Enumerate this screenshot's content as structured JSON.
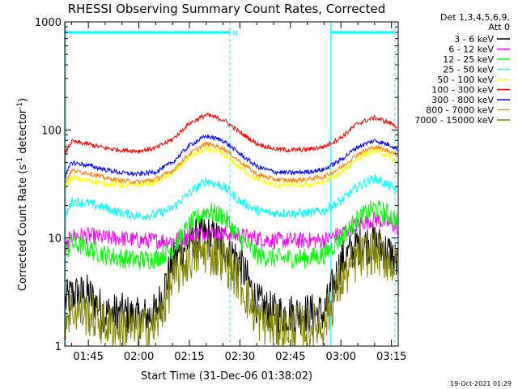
{
  "chart_data": {
    "type": "line",
    "title": "RHESSI Observing Summary Count Rates, Corrected",
    "xlabel": "Start Time (31-Dec-06 01:38:02)",
    "ylabel_main": "Corrected Count Rate (s",
    "ylabel_sup1": "-1",
    "ylabel_mid": " detector",
    "ylabel_sup2": "-1",
    "ylabel_end": ")",
    "yscale": "log",
    "ylim": [
      1,
      1000
    ],
    "xlim_minutes": [
      98.0,
      197.0
    ],
    "x_ticks": [
      "01:45",
      "02:00",
      "02:15",
      "02:30",
      "02:45",
      "03:00",
      "03:15"
    ],
    "y_ticks": [
      "1",
      "10",
      "100",
      "1000"
    ],
    "legend_header": [
      "Det 1,3,4,5,6,9,",
      "Att 0"
    ],
    "legend_position": "right",
    "night_marker_label": "N",
    "timestamp": "19-Oct-2021 01:29",
    "series": [
      {
        "name": "3 - 6 keV",
        "color": "#000000",
        "x": [
          98,
          100,
          105,
          110,
          115,
          120,
          125,
          130,
          135,
          140,
          145,
          150,
          155,
          160,
          165,
          170,
          175,
          180,
          185,
          190,
          195,
          197
        ],
        "values": [
          2.5,
          3.0,
          3.0,
          2.0,
          2.0,
          1.8,
          2.0,
          6.0,
          9.5,
          10.5,
          9.0,
          6.0,
          2.5,
          2.0,
          2.0,
          2.0,
          2.0,
          6.0,
          8.5,
          9.0,
          7.0,
          5.5
        ]
      },
      {
        "name": "6 - 12 keV",
        "color": "#ff00ff",
        "x": [
          98,
          100,
          105,
          110,
          115,
          120,
          125,
          130,
          135,
          140,
          145,
          150,
          155,
          160,
          165,
          170,
          175,
          180,
          185,
          190,
          195,
          197
        ],
        "values": [
          7.5,
          10.5,
          10.5,
          10.0,
          10.0,
          9.5,
          9.5,
          9.5,
          10.5,
          11.5,
          11.0,
          10.5,
          10.0,
          9.5,
          9.5,
          9.5,
          9.5,
          11.0,
          13.5,
          15.0,
          13.5,
          12.5
        ]
      },
      {
        "name": "12 - 25 keV",
        "color": "#00ff00",
        "x": [
          98,
          100,
          105,
          110,
          115,
          120,
          125,
          130,
          135,
          140,
          145,
          150,
          155,
          160,
          165,
          170,
          175,
          180,
          185,
          190,
          195,
          197
        ],
        "values": [
          7.0,
          9.0,
          8.0,
          7.0,
          6.5,
          6.2,
          6.5,
          8.0,
          13.0,
          18.0,
          16.0,
          10.0,
          7.0,
          6.5,
          6.5,
          6.5,
          7.0,
          10.0,
          15.0,
          19.0,
          16.0,
          14.0
        ]
      },
      {
        "name": "25 - 50 keV",
        "color": "#00ffff",
        "x": [
          98,
          100,
          105,
          110,
          115,
          120,
          125,
          130,
          135,
          140,
          145,
          150,
          155,
          160,
          165,
          170,
          175,
          180,
          185,
          190,
          195,
          197
        ],
        "values": [
          15,
          22,
          21,
          19,
          17,
          16,
          16.5,
          19,
          26,
          34,
          30,
          22,
          18,
          17,
          17,
          17,
          18,
          22,
          30,
          36,
          30,
          27
        ]
      },
      {
        "name": "50 - 100 keV",
        "color": "#ffff00",
        "x": [
          98,
          100,
          105,
          110,
          115,
          120,
          125,
          130,
          135,
          140,
          145,
          150,
          155,
          160,
          165,
          170,
          175,
          180,
          185,
          190,
          195,
          197
        ],
        "values": [
          30,
          36,
          34,
          32,
          31,
          31,
          33,
          40,
          56,
          67,
          60,
          45,
          35,
          31,
          31,
          31,
          33,
          40,
          55,
          65,
          55,
          48
        ]
      },
      {
        "name": "100 - 300 keV",
        "color": "#ff0000",
        "x": [
          98,
          100,
          105,
          110,
          115,
          120,
          125,
          130,
          135,
          140,
          145,
          150,
          155,
          160,
          165,
          170,
          175,
          180,
          185,
          190,
          195,
          197
        ],
        "values": [
          60,
          78,
          74,
          68,
          65,
          64,
          68,
          82,
          115,
          138,
          125,
          95,
          75,
          67,
          65,
          66,
          70,
          85,
          115,
          130,
          115,
          105
        ]
      },
      {
        "name": "300 - 800 keV",
        "color": "#0000ff",
        "x": [
          98,
          100,
          105,
          110,
          115,
          120,
          125,
          130,
          135,
          140,
          145,
          150,
          155,
          160,
          165,
          170,
          175,
          180,
          185,
          190,
          195,
          197
        ],
        "values": [
          36,
          50,
          47,
          43,
          40,
          39,
          41,
          50,
          72,
          88,
          80,
          60,
          46,
          41,
          40,
          41,
          43,
          53,
          70,
          80,
          72,
          65
        ]
      },
      {
        "name": "800 - 7000 keV",
        "color": "#ff8000",
        "x": [
          98,
          100,
          105,
          110,
          115,
          120,
          125,
          130,
          135,
          140,
          145,
          150,
          155,
          160,
          165,
          170,
          175,
          180,
          185,
          190,
          195,
          197
        ],
        "values": [
          32,
          42,
          40,
          36,
          34,
          33,
          35,
          42,
          60,
          75,
          68,
          51,
          39,
          35,
          34,
          35,
          37,
          45,
          60,
          70,
          63,
          57
        ]
      },
      {
        "name": "7000 - 15000 keV",
        "color": "#808000",
        "x": [
          98,
          100,
          105,
          110,
          115,
          120,
          125,
          130,
          135,
          140,
          145,
          150,
          155,
          160,
          165,
          170,
          175,
          180,
          185,
          190,
          195,
          197
        ],
        "values": [
          1.8,
          2.2,
          2.0,
          1.6,
          1.5,
          1.4,
          1.5,
          4.0,
          6.5,
          7.5,
          6.5,
          4.0,
          1.8,
          1.5,
          1.5,
          1.5,
          1.6,
          4.0,
          6.5,
          7.5,
          6.0,
          4.8
        ]
      }
    ]
  }
}
